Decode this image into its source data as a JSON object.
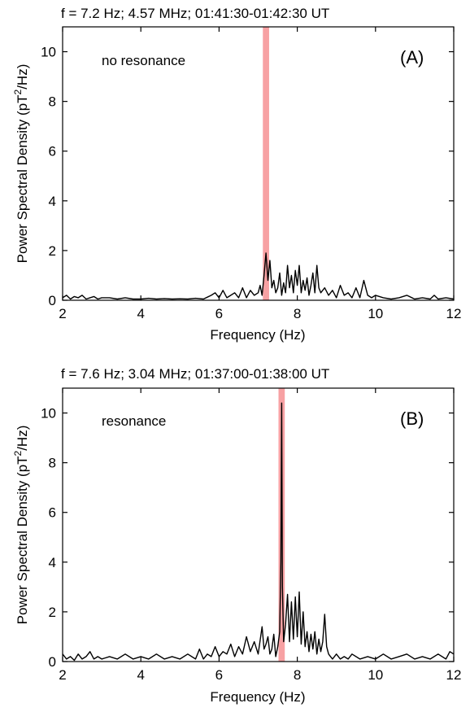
{
  "chart_data": [
    {
      "type": "line",
      "panel": "(A)",
      "title": "f = 7.2 Hz; 4.57 MHz; 01:41:30-01:42:30 UT",
      "annotation": "no  resonance",
      "xlabel": "Frequency (Hz)",
      "ylabel_parts": [
        "Power Spectral Density (pT",
        "2",
        "/Hz)"
      ],
      "xlim": [
        2,
        12
      ],
      "ylim": [
        0,
        11
      ],
      "xticks": [
        2,
        4,
        6,
        8,
        10,
        12
      ],
      "yticks": [
        0,
        2,
        4,
        6,
        8,
        10
      ],
      "highlight_band": {
        "x": [
          7.12,
          7.28
        ],
        "color": "#f7a1a3"
      },
      "line_color": "#000000",
      "x": [
        2.0,
        2.1,
        2.2,
        2.3,
        2.4,
        2.5,
        2.6,
        2.7,
        2.8,
        2.9,
        3.0,
        3.2,
        3.4,
        3.6,
        3.8,
        4.0,
        4.2,
        4.4,
        4.6,
        4.8,
        5.0,
        5.2,
        5.4,
        5.6,
        5.8,
        5.9,
        6.0,
        6.1,
        6.2,
        6.3,
        6.4,
        6.5,
        6.6,
        6.7,
        6.8,
        6.9,
        7.0,
        7.05,
        7.1,
        7.15,
        7.2,
        7.25,
        7.3,
        7.35,
        7.4,
        7.45,
        7.5,
        7.55,
        7.6,
        7.65,
        7.7,
        7.75,
        7.8,
        7.85,
        7.9,
        7.95,
        8.0,
        8.05,
        8.1,
        8.15,
        8.2,
        8.25,
        8.3,
        8.35,
        8.4,
        8.45,
        8.5,
        8.55,
        8.6,
        8.7,
        8.8,
        8.9,
        9.0,
        9.1,
        9.2,
        9.3,
        9.4,
        9.5,
        9.6,
        9.7,
        9.8,
        9.9,
        10.0,
        10.2,
        10.4,
        10.6,
        10.8,
        11.0,
        11.2,
        11.4,
        11.5,
        11.6,
        11.8,
        12.0
      ],
      "y": [
        0.1,
        0.2,
        0.05,
        0.15,
        0.1,
        0.2,
        0.05,
        0.1,
        0.15,
        0.05,
        0.1,
        0.1,
        0.05,
        0.1,
        0.05,
        0.05,
        0.08,
        0.05,
        0.07,
        0.05,
        0.06,
        0.05,
        0.08,
        0.05,
        0.2,
        0.3,
        0.1,
        0.4,
        0.1,
        0.2,
        0.3,
        0.1,
        0.5,
        0.1,
        0.4,
        0.2,
        0.3,
        0.6,
        0.2,
        1.0,
        1.9,
        0.8,
        1.6,
        0.5,
        0.8,
        0.3,
        0.5,
        1.1,
        0.2,
        0.7,
        0.3,
        1.4,
        0.5,
        1.0,
        0.3,
        1.2,
        0.6,
        1.4,
        0.3,
        0.8,
        0.4,
        0.9,
        0.2,
        0.6,
        1.1,
        0.3,
        1.4,
        0.5,
        0.3,
        0.5,
        0.2,
        0.4,
        0.1,
        0.6,
        0.2,
        0.3,
        0.1,
        0.5,
        0.1,
        0.8,
        0.2,
        0.1,
        0.2,
        0.1,
        0.05,
        0.1,
        0.2,
        0.05,
        0.1,
        0.05,
        0.2,
        0.05,
        0.1,
        0.05
      ]
    },
    {
      "type": "line",
      "panel": "(B)",
      "title": "f = 7.6 Hz; 3.04 MHz; 01:37:00-01:38:00 UT",
      "annotation": "resonance",
      "xlabel": "Frequency (Hz)",
      "ylabel_parts": [
        "Power Spectral Density (pT",
        "2",
        "/Hz)"
      ],
      "xlim": [
        2,
        12
      ],
      "ylim": [
        0,
        11
      ],
      "xticks": [
        2,
        4,
        6,
        8,
        10,
        12
      ],
      "yticks": [
        0,
        2,
        4,
        6,
        8,
        10
      ],
      "highlight_band": {
        "x": [
          7.52,
          7.68
        ],
        "color": "#f7a1a3"
      },
      "line_color": "#000000",
      "x": [
        2.0,
        2.1,
        2.2,
        2.3,
        2.4,
        2.5,
        2.6,
        2.7,
        2.8,
        2.9,
        3.0,
        3.2,
        3.4,
        3.6,
        3.8,
        4.0,
        4.2,
        4.4,
        4.6,
        4.8,
        5.0,
        5.2,
        5.4,
        5.5,
        5.6,
        5.7,
        5.8,
        5.9,
        6.0,
        6.1,
        6.2,
        6.3,
        6.4,
        6.5,
        6.6,
        6.7,
        6.8,
        6.9,
        7.0,
        7.1,
        7.15,
        7.2,
        7.25,
        7.3,
        7.35,
        7.4,
        7.45,
        7.5,
        7.55,
        7.58,
        7.6,
        7.62,
        7.65,
        7.7,
        7.75,
        7.8,
        7.85,
        7.9,
        7.95,
        8.0,
        8.05,
        8.1,
        8.15,
        8.2,
        8.25,
        8.3,
        8.35,
        8.4,
        8.45,
        8.5,
        8.55,
        8.6,
        8.65,
        8.7,
        8.75,
        8.8,
        8.85,
        8.9,
        9.0,
        9.1,
        9.2,
        9.3,
        9.4,
        9.6,
        9.8,
        10.0,
        10.2,
        10.4,
        10.6,
        10.8,
        11.0,
        11.2,
        11.4,
        11.6,
        11.8,
        11.9,
        12.0
      ],
      "y": [
        0.3,
        0.1,
        0.2,
        0.05,
        0.3,
        0.1,
        0.2,
        0.4,
        0.1,
        0.2,
        0.1,
        0.2,
        0.1,
        0.3,
        0.1,
        0.2,
        0.1,
        0.3,
        0.1,
        0.2,
        0.1,
        0.3,
        0.1,
        0.5,
        0.1,
        0.3,
        0.2,
        0.6,
        0.2,
        0.4,
        0.3,
        0.7,
        0.2,
        0.6,
        0.3,
        1.0,
        0.4,
        0.8,
        0.3,
        1.4,
        0.5,
        0.7,
        1.0,
        0.3,
        0.5,
        1.1,
        0.2,
        0.6,
        1.2,
        4.0,
        10.4,
        3.0,
        0.8,
        1.5,
        2.7,
        0.8,
        2.4,
        0.9,
        2.6,
        1.0,
        2.8,
        0.7,
        2.0,
        0.6,
        1.2,
        0.4,
        1.1,
        0.5,
        1.2,
        0.3,
        0.9,
        0.4,
        0.8,
        1.9,
        0.6,
        0.3,
        0.2,
        0.1,
        0.3,
        0.1,
        0.2,
        0.1,
        0.3,
        0.1,
        0.2,
        0.1,
        0.3,
        0.1,
        0.2,
        0.3,
        0.1,
        0.2,
        0.1,
        0.3,
        0.1,
        0.4,
        0.3
      ]
    }
  ]
}
